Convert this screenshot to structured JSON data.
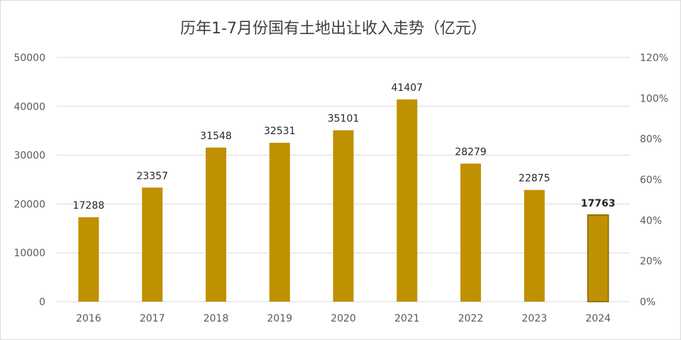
{
  "chart_data": {
    "type": "bar",
    "title": "历年1-7月份国有土地出让收入走势（亿元）",
    "categories": [
      "2016",
      "2017",
      "2018",
      "2019",
      "2020",
      "2021",
      "2022",
      "2023",
      "2024"
    ],
    "series": [
      {
        "values": [
          17288,
          23357,
          31548,
          32531,
          35101,
          41407,
          28279,
          22875,
          17763
        ]
      }
    ],
    "data_labels": [
      "17288",
      "23357",
      "31548",
      "32531",
      "35101",
      "41407",
      "28279",
      "22875",
      "17763"
    ],
    "highlight_index": 8,
    "ylim": [
      0,
      50000
    ],
    "y_ticks": [
      "0",
      "10000",
      "20000",
      "30000",
      "40000",
      "50000"
    ],
    "y2lim": [
      0,
      120
    ],
    "y2_ticks": [
      "0%",
      "20%",
      "40%",
      "60%",
      "80%",
      "100%",
      "120%"
    ],
    "grid": true,
    "colors": {
      "bar": "#bf9000",
      "highlight_border": "#7f6000",
      "grid": "#d9d9d9",
      "text": "#595959",
      "title": "#404040"
    }
  }
}
